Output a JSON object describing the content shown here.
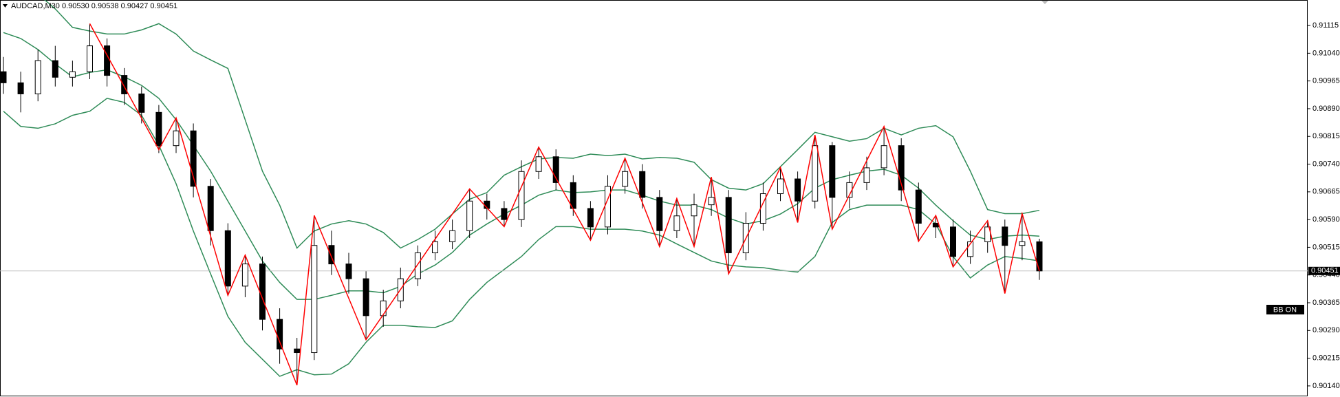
{
  "chart_data": {
    "type": "candlestick",
    "title": "AUDCAD,M30  0.90530 0.90538 0.90427 0.90451",
    "open": [
      0.9099,
      0.9096,
      0.9093,
      0.9102,
      0.90975,
      0.9099,
      0.9106,
      0.9098,
      0.9093,
      0.9088,
      0.9079,
      0.9083,
      0.9068,
      0.9056,
      0.9041,
      0.9047,
      0.9032,
      0.9024,
      0.9023,
      0.9052,
      0.9047,
      0.9043,
      0.9033,
      0.9037,
      0.9043,
      0.905,
      0.9053,
      0.9056,
      0.9064,
      0.9062,
      0.9059,
      0.9072,
      0.9076,
      0.9069,
      0.9062,
      0.9057,
      0.9068,
      0.9072,
      0.9065,
      0.9056,
      0.906,
      0.9063,
      0.9065,
      0.905,
      0.9058,
      0.9066,
      0.907,
      0.9064,
      0.9079,
      0.9065,
      0.9069,
      0.9073,
      0.9079,
      0.9067,
      0.9058,
      0.9057,
      0.9049,
      0.9053,
      0.9057,
      0.9052,
      0.9053
    ],
    "high": [
      0.9103,
      0.9099,
      0.9105,
      0.9106,
      0.9102,
      0.9112,
      0.9108,
      0.91,
      0.9095,
      0.909,
      0.90865,
      0.9085,
      0.907,
      0.9058,
      0.90494,
      0.9049,
      0.9035,
      0.9027,
      0.90601,
      0.9056,
      0.905,
      0.9045,
      0.904,
      0.9046,
      0.9052,
      0.9056,
      0.9059,
      0.90673,
      0.9066,
      0.9064,
      0.9075,
      0.90786,
      0.9078,
      0.9071,
      0.9064,
      0.9071,
      0.90756,
      0.9074,
      0.9067,
      0.90647,
      0.9066,
      0.90705,
      0.9067,
      0.9061,
      0.9069,
      0.90731,
      0.9072,
      0.90819,
      0.908,
      0.9072,
      0.9076,
      0.90842,
      0.9081,
      0.9069,
      0.90601,
      0.9059,
      0.9056,
      0.90587,
      0.9059,
      0.90606,
      0.90538
    ],
    "low": [
      0.9093,
      0.9088,
      0.9091,
      0.9095,
      0.9095,
      0.9097,
      0.9095,
      0.909,
      0.9085,
      0.9077,
      0.9077,
      0.9065,
      0.9052,
      0.90385,
      0.9038,
      0.9029,
      0.902,
      0.90142,
      0.9021,
      0.9044,
      0.9039,
      0.90265,
      0.903,
      0.9035,
      0.9041,
      0.9048,
      0.9051,
      0.9054,
      0.9059,
      0.90571,
      0.9057,
      0.907,
      0.9067,
      0.906,
      0.90534,
      0.9055,
      0.9066,
      0.9062,
      0.90517,
      0.9054,
      0.90517,
      0.906,
      0.90443,
      0.9048,
      0.9056,
      0.9064,
      0.90582,
      0.9062,
      0.90564,
      0.9062,
      0.9067,
      0.9071,
      0.9064,
      0.90531,
      0.9054,
      0.90462,
      0.9047,
      0.905,
      0.9039,
      0.9048,
      0.90427
    ],
    "close": [
      0.9096,
      0.9093,
      0.9102,
      0.90975,
      0.9099,
      0.9106,
      0.9098,
      0.9093,
      0.9088,
      0.9079,
      0.9083,
      0.9068,
      0.9056,
      0.9041,
      0.9047,
      0.9032,
      0.9024,
      0.9023,
      0.9052,
      0.9047,
      0.9043,
      0.9033,
      0.9037,
      0.9043,
      0.905,
      0.9053,
      0.9056,
      0.9064,
      0.9062,
      0.9059,
      0.9072,
      0.9076,
      0.9069,
      0.9062,
      0.9057,
      0.9068,
      0.9072,
      0.9065,
      0.9056,
      0.906,
      0.9063,
      0.9065,
      0.905,
      0.9058,
      0.9066,
      0.907,
      0.9064,
      0.9079,
      0.9065,
      0.9069,
      0.9073,
      0.9079,
      0.9067,
      0.9058,
      0.9057,
      0.9049,
      0.9053,
      0.9057,
      0.9052,
      0.9053,
      0.90451
    ],
    "bands": [
      {
        "color": "#2e8b57",
        "values": [
          0.9125,
          0.9123,
          0.912,
          0.9116,
          0.9111,
          0.911,
          0.91092,
          0.91092,
          0.91103,
          0.9112,
          0.91092,
          0.91046,
          0.91022,
          0.90999,
          0.9086,
          0.90721,
          0.90629,
          0.90513,
          0.90559,
          0.90578,
          0.90587,
          0.90578,
          0.90555,
          0.90513,
          0.90536,
          0.90564,
          0.90605,
          0.90645,
          0.90663,
          0.9071,
          0.90733,
          0.90754,
          0.90758,
          0.90756,
          0.90767,
          0.90763,
          0.90767,
          0.90754,
          0.90758,
          0.90756,
          0.90745,
          0.90698,
          0.90675,
          0.9067,
          0.90687,
          0.90733,
          0.90779,
          0.90826,
          0.90814,
          0.90802,
          0.90809,
          0.90837,
          0.90819,
          0.90837,
          0.90844,
          0.90814,
          0.90721,
          0.90617,
          0.90606,
          0.90606,
          0.90615
        ]
      },
      {
        "color": "#2e8b57",
        "values": [
          0.91096,
          0.9108,
          0.9105,
          0.91011,
          0.90976,
          0.90988,
          0.90995,
          0.90976,
          0.90953,
          0.90918,
          0.9086,
          0.90791,
          0.90721,
          0.9064,
          0.90559,
          0.90478,
          0.9042,
          0.90374,
          0.90374,
          0.90385,
          0.90397,
          0.90397,
          0.90392,
          0.90409,
          0.90443,
          0.90467,
          0.90501,
          0.90548,
          0.90578,
          0.90605,
          0.90629,
          0.90656,
          0.9067,
          0.90663,
          0.90665,
          0.9067,
          0.9067,
          0.90656,
          0.9064,
          0.90629,
          0.90629,
          0.90617,
          0.90594,
          0.90578,
          0.90587,
          0.90605,
          0.90633,
          0.90675,
          0.90698,
          0.9071,
          0.90721,
          0.90726,
          0.9071,
          0.90675,
          0.90629,
          0.90587,
          0.90548,
          0.90536,
          0.90545,
          0.90548,
          0.90545
        ]
      },
      {
        "color": "#2e8b57",
        "values": [
          0.90883,
          0.90842,
          0.90837,
          0.90849,
          0.90872,
          0.90883,
          0.90918,
          0.90907,
          0.90872,
          0.90791,
          0.90687,
          0.90559,
          0.90443,
          0.90328,
          0.90258,
          0.90212,
          0.90166,
          0.90184,
          0.9017,
          0.90172,
          0.902,
          0.90258,
          0.90304,
          0.90304,
          0.903,
          0.90298,
          0.90316,
          0.90374,
          0.9042,
          0.90455,
          0.9049,
          0.90536,
          0.90571,
          0.90571,
          0.90564,
          0.90564,
          0.90564,
          0.90559,
          0.90548,
          0.90524,
          0.90501,
          0.90478,
          0.90467,
          0.90462,
          0.9046,
          0.90453,
          0.90448,
          0.9049,
          0.90582,
          0.90617,
          0.90629,
          0.90629,
          0.90629,
          0.90617,
          0.90578,
          0.9049,
          0.90432,
          0.90467,
          0.9049,
          0.90485,
          0.90478
        ]
      }
    ],
    "zigzag": {
      "color": "#ff0000",
      "x": [
        5,
        9,
        10,
        13,
        14,
        17,
        18,
        21,
        27,
        29,
        31,
        34,
        36,
        38,
        39,
        40,
        41,
        42,
        45,
        46,
        47,
        48,
        51,
        53,
        54,
        55,
        57,
        58,
        59,
        60
      ],
      "values": [
        0.9112,
        0.90779,
        0.90865,
        0.90385,
        0.90494,
        0.90142,
        0.90601,
        0.90265,
        0.90673,
        0.90571,
        0.90786,
        0.90534,
        0.90756,
        0.90517,
        0.90647,
        0.90517,
        0.90705,
        0.90443,
        0.90731,
        0.90582,
        0.90819,
        0.90564,
        0.90842,
        0.90531,
        0.90601,
        0.90462,
        0.90587,
        0.9039,
        0.90606,
        0.90451
      ]
    },
    "candle_color": "#000000",
    "last_price": 0.90451,
    "indicator_label": "BB ON",
    "ylim": [
      0.9011,
      0.91184
    ],
    "yticks": [
      {
        "value": 0.91115,
        "label": "0.91115"
      },
      {
        "value": 0.9104,
        "label": "0.91040"
      },
      {
        "value": 0.90965,
        "label": "0.90965"
      },
      {
        "value": 0.9089,
        "label": "0.90890"
      },
      {
        "value": 0.90815,
        "label": "0.90815"
      },
      {
        "value": 0.9074,
        "label": "0.90740"
      },
      {
        "value": 0.90665,
        "label": "0.90665"
      },
      {
        "value": 0.9059,
        "label": "0.90590"
      },
      {
        "value": 0.90515,
        "label": "0.90515"
      },
      {
        "value": 0.9044,
        "label": "0.90440"
      },
      {
        "value": 0.90365,
        "label": "0.90365"
      },
      {
        "value": 0.9029,
        "label": "0.90290"
      },
      {
        "value": 0.90215,
        "label": "0.90215"
      },
      {
        "value": 0.9014,
        "label": "0.90140"
      }
    ]
  }
}
